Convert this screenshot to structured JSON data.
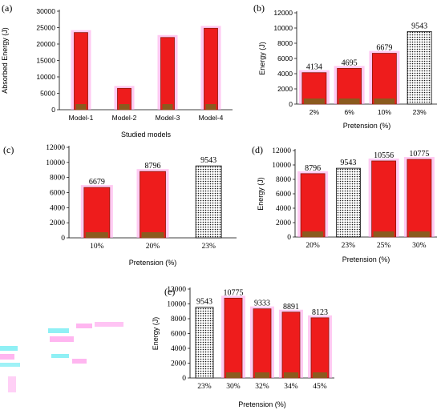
{
  "colors": {
    "bar_fill": "#ee1c1c",
    "bar_edge": "#8a1a0a",
    "bar_base": "#8b5a1e",
    "highlight": "#ff9ee8",
    "reference_fill": "dotted-pattern"
  },
  "chart_data": [
    {
      "panel": "(a)",
      "type": "bar",
      "categories": [
        "Model-1",
        "Model-2",
        "Model-3",
        "Model-4"
      ],
      "values": [
        23500,
        6500,
        22000,
        24800
      ],
      "xlabel": "Studied models",
      "ylabel": "Absorbed Energy (J)",
      "ylim": [
        0,
        30000
      ],
      "yticks": [
        "0",
        "5000",
        "10000",
        "15000",
        "20000",
        "25000",
        "30000"
      ],
      "data_labels": [],
      "grid": false
    },
    {
      "panel": "(b)",
      "type": "bar",
      "categories": [
        "2%",
        "6%",
        "10%",
        "23%"
      ],
      "values": [
        4134,
        4695,
        6679,
        9543
      ],
      "data_labels": [
        "4134",
        "4695",
        "6679",
        "9543"
      ],
      "reference_index": 3,
      "xlabel": "Pretension (%)",
      "ylabel": "Energy (J)",
      "ylim": [
        0,
        12000
      ],
      "yticks": [
        "0",
        "2000",
        "4000",
        "6000",
        "8000",
        "10000",
        "12000"
      ],
      "grid": false
    },
    {
      "panel": "(c)",
      "type": "bar",
      "categories": [
        "10%",
        "20%",
        "23%"
      ],
      "values": [
        6679,
        8796,
        9543
      ],
      "data_labels": [
        "6679",
        "8796",
        "9543"
      ],
      "reference_index": 2,
      "xlabel": "Pretension (%)",
      "ylabel": "",
      "ylim": [
        0,
        12000
      ],
      "yticks": [
        "0",
        "2000",
        "4000",
        "6000",
        "8000",
        "10000",
        "12000"
      ],
      "grid": false
    },
    {
      "panel": "(d)",
      "type": "bar",
      "categories": [
        "20%",
        "23%",
        "25%",
        "30%"
      ],
      "values": [
        8796,
        9543,
        10556,
        10775
      ],
      "data_labels": [
        "8796",
        "9543",
        "10556",
        "10775"
      ],
      "reference_index": 1,
      "xlabel": "Pretension (%)",
      "ylabel": "Energy (J)",
      "ylim": [
        0,
        12000
      ],
      "yticks": [
        "0",
        "2000",
        "4000",
        "6000",
        "8000",
        "10000",
        "12000"
      ],
      "grid": false
    },
    {
      "panel": "(e)",
      "type": "bar",
      "categories": [
        "23%",
        "30%",
        "32%",
        "34%",
        "45%"
      ],
      "values": [
        9543,
        10775,
        9333,
        8891,
        8123
      ],
      "data_labels": [
        "9543",
        "10775",
        "9333",
        "8891",
        "8123"
      ],
      "reference_index": 0,
      "xlabel": "Pretension (%)",
      "ylabel": "Energy (J)",
      "ylim": [
        0,
        12000
      ],
      "yticks": [
        "0",
        "2000",
        "4000",
        "6000",
        "8000",
        "10000",
        "12000"
      ],
      "grid": false
    }
  ]
}
